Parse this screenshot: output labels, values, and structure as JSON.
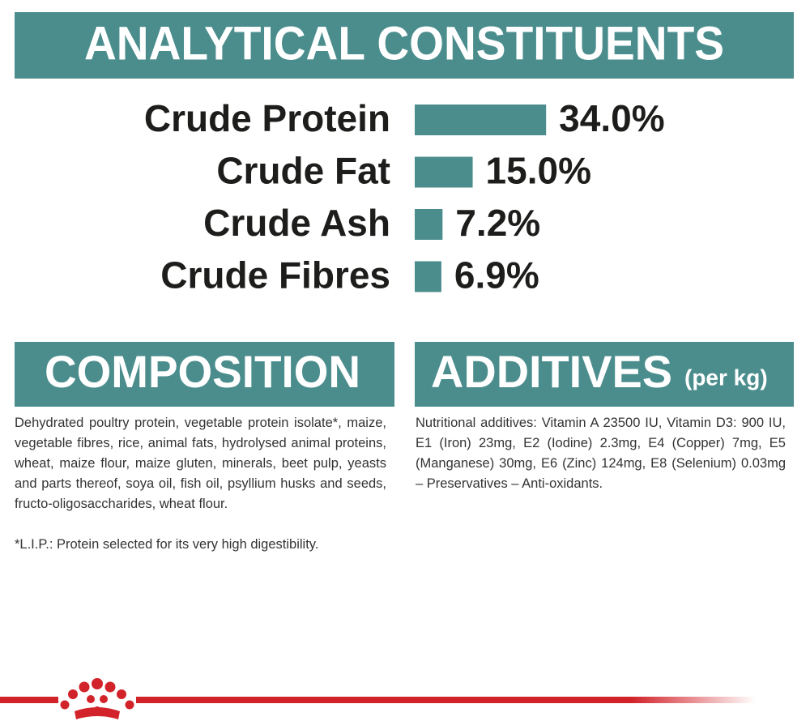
{
  "chart_data": {
    "type": "bar",
    "title": "ANALYTICAL CONSTITUENTS",
    "categories": [
      "Crude Protein",
      "Crude Fat",
      "Crude Ash",
      "Crude Fibres"
    ],
    "values": [
      34.0,
      15.0,
      7.2,
      6.9
    ],
    "value_labels": [
      "34.0%",
      "15.0%",
      "7.2%",
      "6.9%"
    ],
    "color": "#4b8d8d"
  },
  "composition": {
    "title": "COMPOSITION",
    "text": "Dehydrated poultry protein, vegetable protein isolate*, maize, vegetable fibres, rice, animal fats, hydrolysed animal proteins, wheat, maize flour, maize gluten, minerals, beet pulp, yeasts and parts thereof, soya oil, fish oil, psyllium husks and seeds, fructo-oligosaccharides, wheat flour.",
    "note": "*L.I.P.: Protein selected for its very high digestibility."
  },
  "additives": {
    "title": "ADDITIVES",
    "subtitle": "(per kg)",
    "text": "Nutritional additives: Vitamin A 23500 IU, Vitamin D3: 900 IU, E1 (Iron) 23mg, E2 (Iodine) 2.3mg, E4 (Copper) 7mg, E5 (Manganese) 30mg, E6 (Zinc) 124mg, E8 (Selenium) 0.03mg – Preservatives – Anti-oxidants."
  }
}
